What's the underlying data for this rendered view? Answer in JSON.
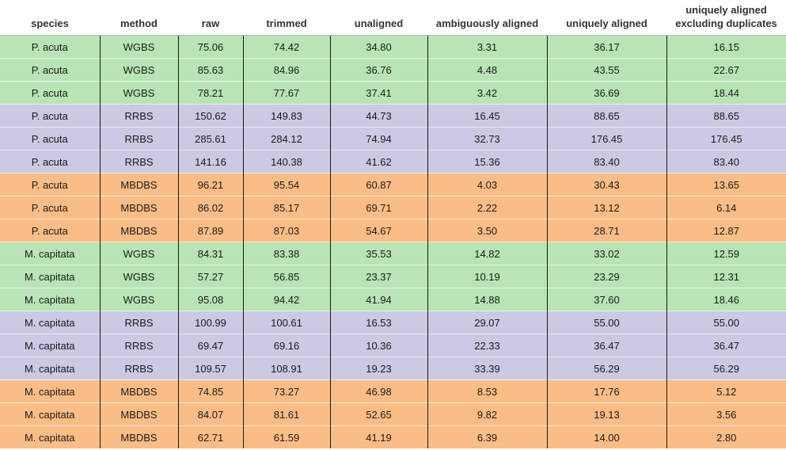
{
  "columns": [
    "species",
    "method",
    "raw",
    "trimmed",
    "unaligned",
    "ambiguously aligned",
    "uniquely aligned",
    "uniquely aligned excluding duplicates"
  ],
  "method_colors": {
    "WGBS": "#b9e4b5",
    "RRBS": "#cbc9e3",
    "MBDBS": "#fbbd86"
  },
  "rows": [
    [
      "P. acuta",
      "WGBS",
      "75.06",
      "74.42",
      "34.80",
      "3.31",
      "36.17",
      "16.15"
    ],
    [
      "P. acuta",
      "WGBS",
      "85.63",
      "84.96",
      "36.76",
      "4.48",
      "43.55",
      "22.67"
    ],
    [
      "P. acuta",
      "WGBS",
      "78.21",
      "77.67",
      "37.41",
      "3.42",
      "36.69",
      "18.44"
    ],
    [
      "P. acuta",
      "RRBS",
      "150.62",
      "149.83",
      "44.73",
      "16.45",
      "88.65",
      "88.65"
    ],
    [
      "P. acuta",
      "RRBS",
      "285.61",
      "284.12",
      "74.94",
      "32.73",
      "176.45",
      "176.45"
    ],
    [
      "P. acuta",
      "RRBS",
      "141.16",
      "140.38",
      "41.62",
      "15.36",
      "83.40",
      "83.40"
    ],
    [
      "P. acuta",
      "MBDBS",
      "96.21",
      "95.54",
      "60.87",
      "4.03",
      "30.43",
      "13.65"
    ],
    [
      "P. acuta",
      "MBDBS",
      "86.02",
      "85.17",
      "69.71",
      "2.22",
      "13.12",
      "6.14"
    ],
    [
      "P. acuta",
      "MBDBS",
      "87.89",
      "87.03",
      "54.67",
      "3.50",
      "28.71",
      "12.87"
    ],
    [
      "M. capitata",
      "WGBS",
      "84.31",
      "83.38",
      "35.53",
      "14.82",
      "33.02",
      "12.59"
    ],
    [
      "M. capitata",
      "WGBS",
      "57.27",
      "56.85",
      "23.37",
      "10.19",
      "23.29",
      "12.31"
    ],
    [
      "M. capitata",
      "WGBS",
      "95.08",
      "94.42",
      "41.94",
      "14.88",
      "37.60",
      "18.46"
    ],
    [
      "M. capitata",
      "RRBS",
      "100.99",
      "100.61",
      "16.53",
      "29.07",
      "55.00",
      "55.00"
    ],
    [
      "M. capitata",
      "RRBS",
      "69.47",
      "69.16",
      "10.36",
      "22.33",
      "36.47",
      "36.47"
    ],
    [
      "M. capitata",
      "RRBS",
      "109.57",
      "108.91",
      "19.23",
      "33.39",
      "56.29",
      "56.29"
    ],
    [
      "M. capitata",
      "MBDBS",
      "74.85",
      "73.27",
      "46.98",
      "8.53",
      "17.76",
      "5.12"
    ],
    [
      "M. capitata",
      "MBDBS",
      "84.07",
      "81.61",
      "52.65",
      "9.82",
      "19.13",
      "3.56"
    ],
    [
      "M. capitata",
      "MBDBS",
      "62.71",
      "61.59",
      "41.19",
      "6.39",
      "14.00",
      "2.80"
    ]
  ]
}
